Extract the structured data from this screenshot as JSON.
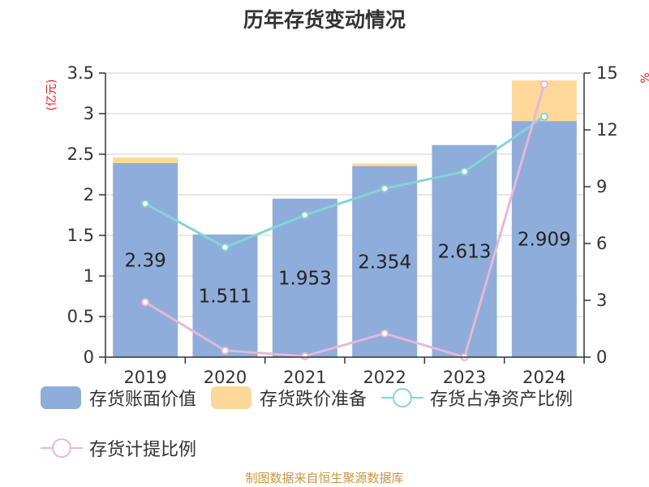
{
  "title": "历年存货变动情况",
  "source": "制图数据来自恒生聚源数据库",
  "colors": {
    "bar_value": "#8eadda",
    "bar_provision": "#fdd898",
    "line_ratio": "#85d4d4",
    "line_provision_ratio": "#e6b7d9",
    "unit_label": "#dd2222",
    "source": "#c8963c"
  },
  "chart_data": {
    "type": "bar",
    "title": "历年存货变动情况",
    "categories": [
      "2019",
      "2020",
      "2021",
      "2022",
      "2023",
      "2024"
    ],
    "left_axis": {
      "unit": "(亿元)",
      "ylim": [
        0,
        3.5
      ],
      "ticks": [
        "0",
        "0.5",
        "1",
        "1.5",
        "2",
        "2.5",
        "3",
        "3.5"
      ]
    },
    "right_axis": {
      "unit": "%",
      "ylim": [
        0,
        15
      ],
      "ticks": [
        "0",
        "3",
        "6",
        "9",
        "12",
        "15"
      ]
    },
    "grid": true,
    "legend_position": "bottom",
    "series": [
      {
        "name": "存货账面价值",
        "kind": "bar",
        "stack": "inventory",
        "axis": "left",
        "values": [
          2.39,
          1.511,
          1.953,
          2.354,
          2.613,
          2.909
        ],
        "labels": [
          "2.39",
          "1.511",
          "1.953",
          "2.354",
          "2.613",
          "2.909"
        ]
      },
      {
        "name": "存货跌价准备",
        "kind": "bar",
        "stack": "inventory",
        "axis": "left",
        "values": [
          0.07,
          0.0,
          0.0,
          0.03,
          0.0,
          0.5
        ]
      },
      {
        "name": "存货占净资产比例",
        "kind": "line",
        "axis": "right",
        "values": [
          8.1,
          5.8,
          7.5,
          8.9,
          9.8,
          12.7
        ]
      },
      {
        "name": "存货计提比例",
        "kind": "line",
        "axis": "right",
        "values": [
          2.9,
          0.35,
          0.05,
          1.25,
          0.0,
          14.4
        ]
      }
    ]
  }
}
